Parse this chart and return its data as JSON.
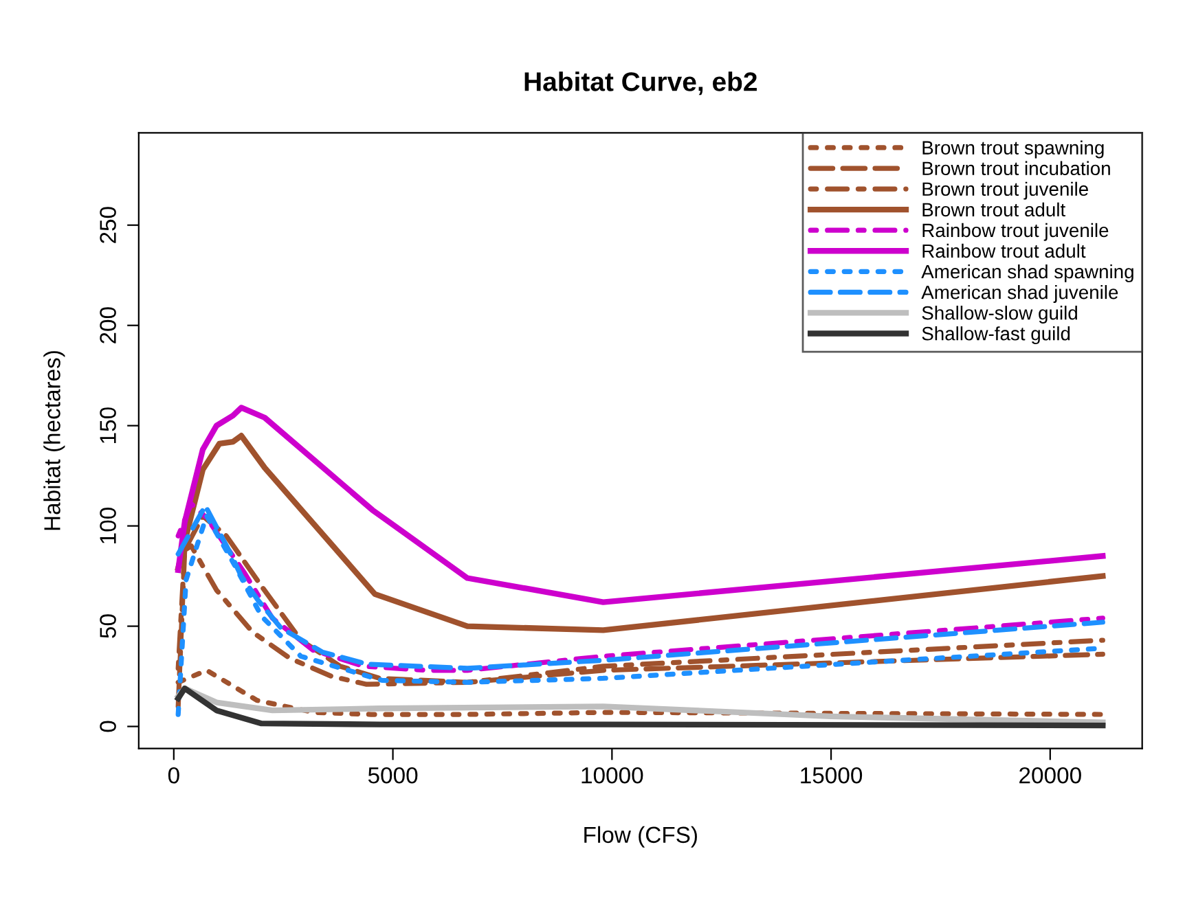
{
  "chart_data": {
    "type": "line",
    "title": "Habitat Curve, eb2",
    "xlabel": "Flow (CFS)",
    "ylabel": "Habitat (hectares)",
    "xlim": [
      -800,
      22100
    ],
    "ylim": [
      -11,
      296
    ],
    "xticks": [
      0,
      5000,
      10000,
      15000,
      20000
    ],
    "yticks": [
      0,
      50,
      100,
      150,
      200,
      250
    ],
    "grid": false,
    "legend": "top right",
    "marker": "none",
    "series": [
      {
        "name": "Brown trout spawning",
        "color": "#a0522d",
        "line_style": "dotted",
        "x": [
          100,
          750,
          1900,
          3200,
          4500,
          6700,
          9800,
          21200
        ],
        "values": [
          22,
          28,
          13,
          7,
          6,
          6,
          7,
          6
        ]
      },
      {
        "name": "Brown trout incubation",
        "color": "#a0522d",
        "line_style": "longdash",
        "x": [
          100,
          250,
          660,
          1200,
          2000,
          2900,
          3800,
          4700,
          6700,
          9800,
          21200
        ],
        "values": [
          10,
          88,
          105,
          95,
          70,
          43,
          30,
          24,
          22,
          28,
          36
        ]
      },
      {
        "name": "Brown trout juvenile",
        "color": "#a0522d",
        "line_style": "dashdot",
        "x": [
          100,
          250,
          400,
          975,
          1800,
          2650,
          3600,
          4400,
          6700,
          9800,
          21200
        ],
        "values": [
          29,
          88,
          90,
          68,
          47,
          34,
          25,
          21,
          22,
          30,
          43
        ]
      },
      {
        "name": "Brown trout adult",
        "color": "#a0522d",
        "line_style": "solid",
        "x": [
          100,
          660,
          1040,
          1350,
          1540,
          2075,
          4590,
          6700,
          9800,
          21200
        ],
        "values": [
          79,
          128,
          141,
          142,
          145,
          129,
          66,
          50,
          48,
          75
        ]
      },
      {
        "name": "Rainbow trout juvenile",
        "color": "#cd00cd",
        "line_style": "dashdot",
        "x": [
          100,
          400,
          750,
          1600,
          2250,
          3180,
          4340,
          5790,
          6700,
          9800,
          21200
        ],
        "values": [
          95,
          111,
          104,
          77,
          54,
          38,
          30,
          28,
          28,
          35,
          54
        ]
      },
      {
        "name": "Rainbow trout adult",
        "color": "#cd00cd",
        "line_style": "solid",
        "x": [
          100,
          250,
          660,
          975,
          1350,
          1540,
          2075,
          4530,
          6700,
          9800,
          21200
        ],
        "values": [
          78,
          102,
          138,
          150,
          155,
          159,
          154,
          108,
          74,
          62,
          85
        ]
      },
      {
        "name": "American shad spawning",
        "color": "#1e90ff",
        "line_style": "dotted",
        "x": [
          100,
          280,
          600,
          750,
          1400,
          2000,
          2900,
          4750,
          6700,
          9800,
          21200
        ],
        "values": [
          6,
          73,
          95,
          105,
          80,
          55,
          35,
          23,
          22,
          24,
          39
        ]
      },
      {
        "name": "American shad juvenile",
        "color": "#1e90ff",
        "line_style": "dashed",
        "x": [
          100,
          720,
          1300,
          1540,
          1920,
          2450,
          3400,
          4430,
          6700,
          9800,
          21200
        ],
        "values": [
          86,
          110,
          86,
          75,
          63,
          49,
          37,
          31,
          29,
          33,
          52
        ]
      },
      {
        "name": "Shallow-slow guild",
        "color": "#bebebe",
        "line_style": "solid",
        "x": [
          100,
          250,
          975,
          2250,
          4700,
          9800,
          15000,
          21200
        ],
        "values": [
          15,
          19,
          12,
          8,
          9,
          10,
          5,
          2
        ]
      },
      {
        "name": "Shallow-fast guild",
        "color": "#333333",
        "line_style": "solid",
        "x": [
          100,
          250,
          975,
          2000,
          4700,
          9800,
          21200
        ],
        "values": [
          14,
          19,
          8,
          1.5,
          1,
          1,
          0.5
        ]
      }
    ]
  }
}
